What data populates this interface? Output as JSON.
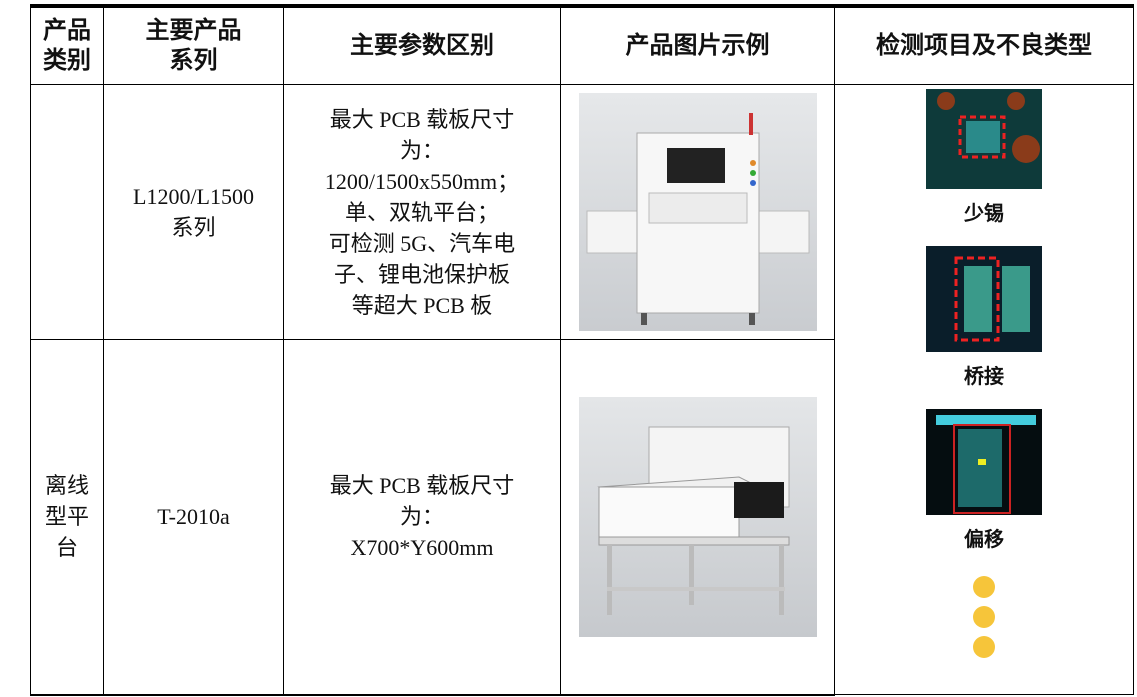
{
  "table": {
    "headers": [
      [
        "产品",
        "类别"
      ],
      [
        "主要产品",
        "系列"
      ],
      [
        "主要参数区别"
      ],
      [
        "产品图片示例"
      ],
      [
        "检测项目及不良类型"
      ]
    ],
    "rows": [
      {
        "series": [
          "L1200/L1500",
          "系列"
        ],
        "params": [
          "最大 PCB 载板尺寸",
          "为：",
          "1200/1500x550mm；",
          "单、双轨平台；",
          "可检测 5G、汽车电",
          "子、锂电池保护板",
          "等超大 PCB 板"
        ]
      },
      {
        "category": [
          "离线",
          "型平",
          "台"
        ],
        "series": [
          "T-2010a"
        ],
        "params": [
          "最大 PCB 载板尺寸",
          "为：",
          "X700*Y600mm"
        ]
      }
    ],
    "defects": [
      "少锡",
      "桥接",
      "偏移"
    ]
  }
}
